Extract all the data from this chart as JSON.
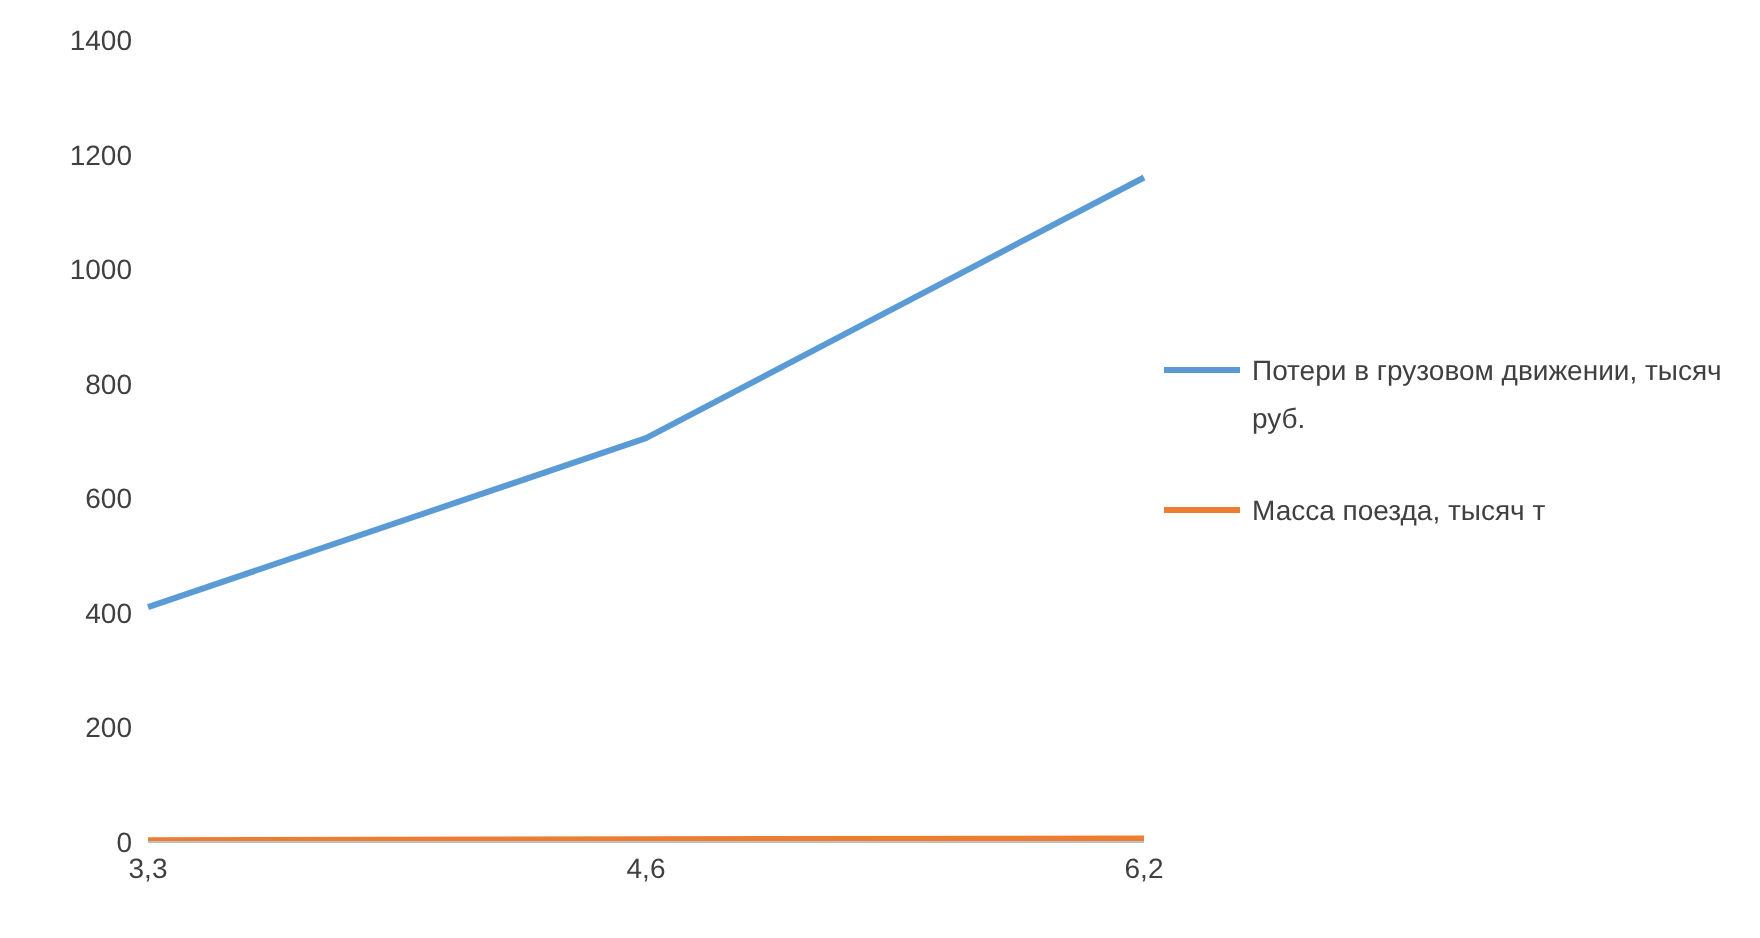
{
  "chart_data": {
    "type": "line",
    "categories": [
      "3,3",
      "4,6",
      "6,2"
    ],
    "series": [
      {
        "name": "Потери в грузовом движении, тысяч руб.",
        "color": "#5b9bd5",
        "values": [
          410,
          705,
          1160
        ]
      },
      {
        "name": "Масса поезда, тысяч  т",
        "color": "#ed7d31",
        "values": [
          3,
          5,
          6
        ]
      }
    ],
    "ylim": [
      0,
      1400
    ],
    "yticks": [
      0,
      200,
      400,
      600,
      800,
      1000,
      1200,
      1400
    ],
    "grid": false,
    "legend": "right",
    "marker": "none",
    "line_style": "solid"
  }
}
